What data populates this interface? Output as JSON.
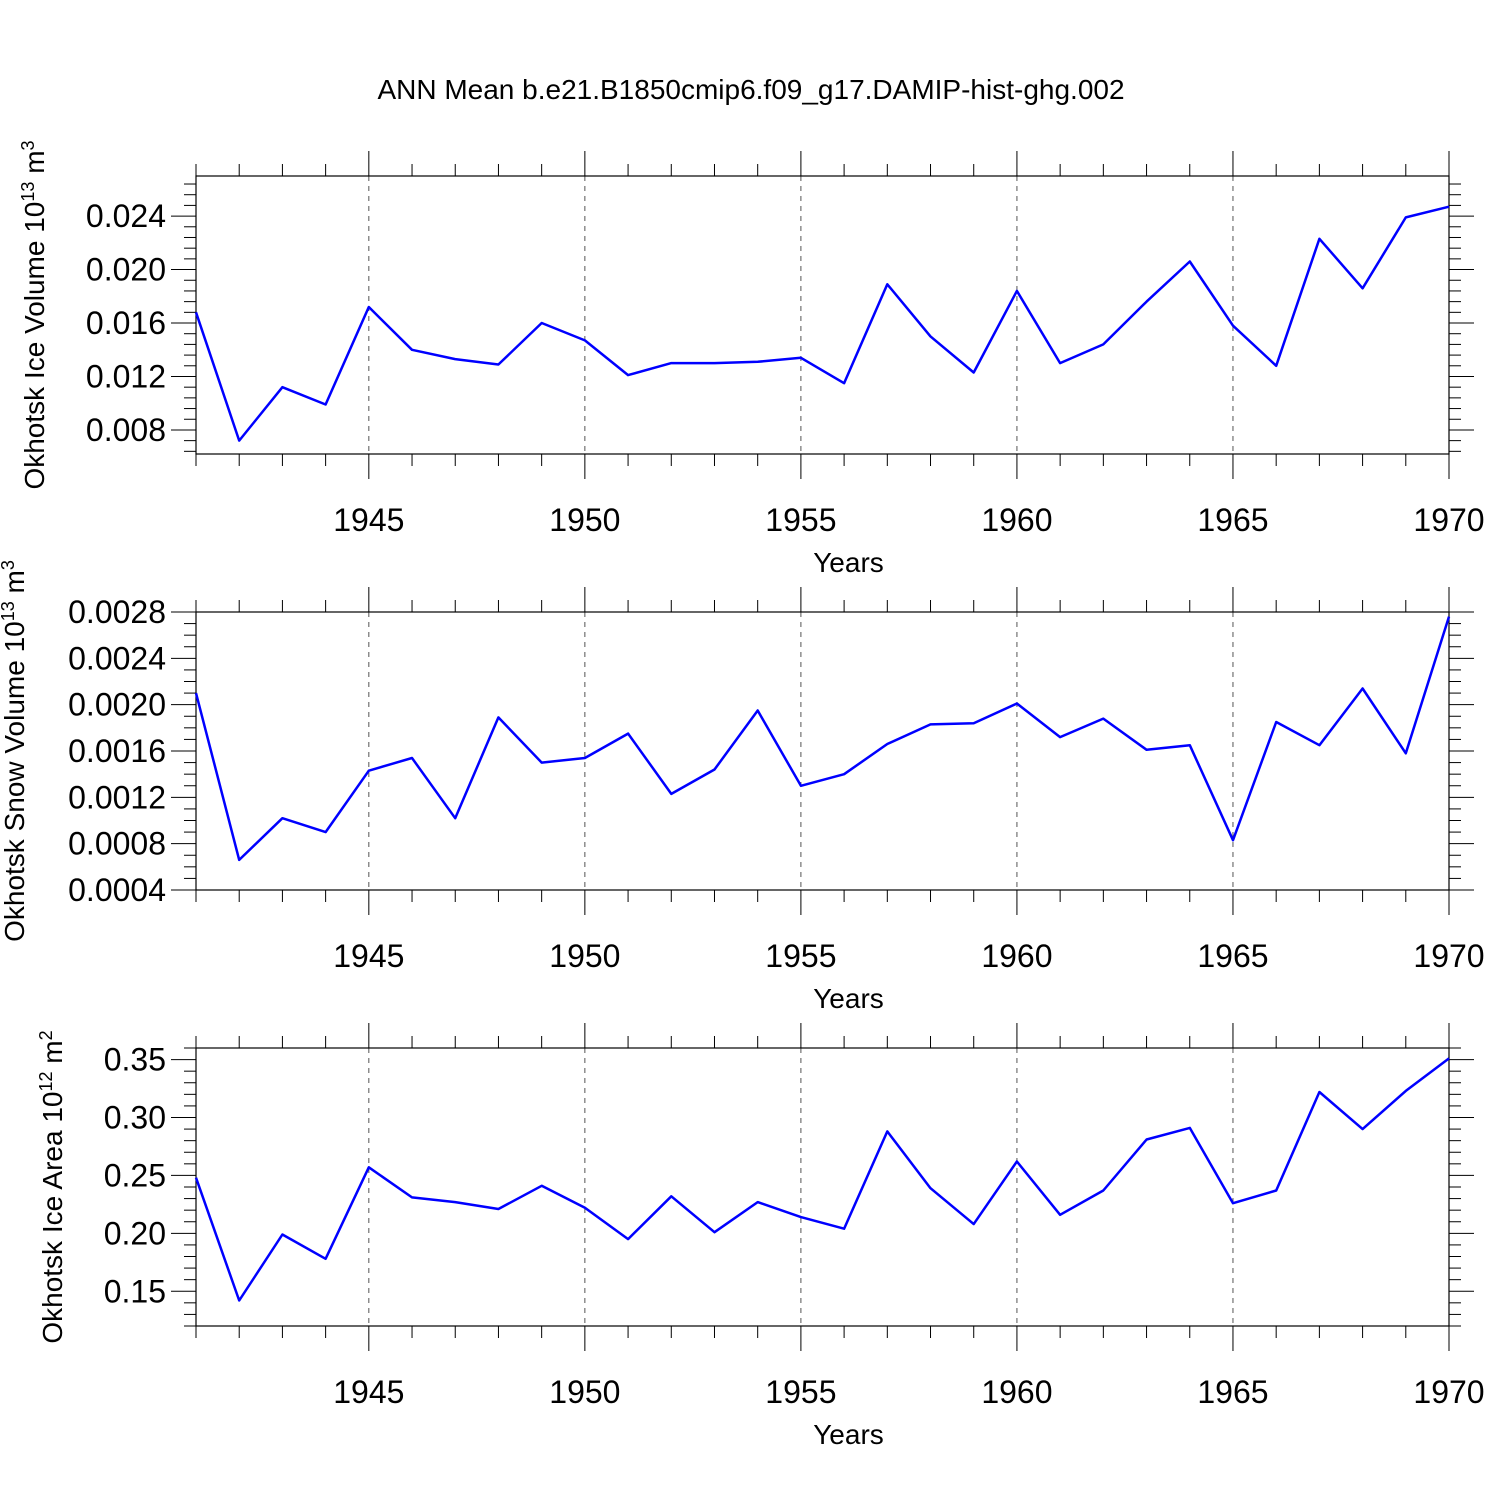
{
  "figure_title": "ANN Mean b.e21.B1850cmip6.f09_g17.DAMIP-hist-ghg.002",
  "chart_data": [
    {
      "type": "line",
      "xlabel": "Years",
      "ylabel": "Okhotsk Ice Volume 10",
      "ylabel_exp": "13",
      "ylabel_unit": " m",
      "ylabel_unit_exp": "3",
      "xlim": [
        1941,
        1970
      ],
      "ylim": [
        0.0062,
        0.027
      ],
      "xticks": [
        1945,
        1950,
        1955,
        1960,
        1965,
        1970
      ],
      "xtick_labels": [
        "1945",
        "1950",
        "1955",
        "1960",
        "1965",
        "1970"
      ],
      "yticks": [
        0.008,
        0.012,
        0.016,
        0.02,
        0.024
      ],
      "ytick_labels": [
        "0.008",
        "0.012",
        "0.016",
        "0.020",
        "0.024"
      ],
      "y_minor_step": 0.0008,
      "grid": "vertical dashed at major x ticks",
      "color": "#0000ff",
      "x": [
        1941,
        1942,
        1943,
        1944,
        1945,
        1946,
        1947,
        1948,
        1949,
        1950,
        1951,
        1952,
        1953,
        1954,
        1955,
        1956,
        1957,
        1958,
        1959,
        1960,
        1961,
        1962,
        1963,
        1964,
        1965,
        1966,
        1967,
        1968,
        1969,
        1970
      ],
      "values": [
        0.0168,
        0.0072,
        0.0112,
        0.0099,
        0.0172,
        0.014,
        0.0133,
        0.0129,
        0.016,
        0.0147,
        0.0121,
        0.013,
        0.013,
        0.0131,
        0.0134,
        0.0115,
        0.0189,
        0.015,
        0.0123,
        0.0184,
        0.013,
        0.0144,
        0.0176,
        0.0206,
        0.0158,
        0.0128,
        0.0223,
        0.0186,
        0.0239,
        0.0247
      ]
    },
    {
      "type": "line",
      "xlabel": "Years",
      "ylabel": "Okhotsk Snow Volume 10",
      "ylabel_exp": "13",
      "ylabel_unit": " m",
      "ylabel_unit_exp": "3",
      "xlim": [
        1941,
        1970
      ],
      "ylim": [
        0.0004,
        0.0028
      ],
      "xticks": [
        1945,
        1950,
        1955,
        1960,
        1965,
        1970
      ],
      "xtick_labels": [
        "1945",
        "1950",
        "1955",
        "1960",
        "1965",
        "1970"
      ],
      "yticks": [
        0.0004,
        0.0008,
        0.0012,
        0.0016,
        0.002,
        0.0024,
        0.0028
      ],
      "ytick_labels": [
        "0.0004",
        "0.0008",
        "0.0012",
        "0.0016",
        "0.0020",
        "0.0024",
        "0.0028"
      ],
      "y_minor_step": 0.0001,
      "grid": "vertical dashed at major x ticks",
      "color": "#0000ff",
      "x": [
        1941,
        1942,
        1943,
        1944,
        1945,
        1946,
        1947,
        1948,
        1949,
        1950,
        1951,
        1952,
        1953,
        1954,
        1955,
        1956,
        1957,
        1958,
        1959,
        1960,
        1961,
        1962,
        1963,
        1964,
        1965,
        1966,
        1967,
        1968,
        1969,
        1970
      ],
      "values": [
        0.0021,
        0.00066,
        0.00102,
        0.0009,
        0.00143,
        0.00154,
        0.00102,
        0.00189,
        0.0015,
        0.00154,
        0.00175,
        0.00123,
        0.00144,
        0.00195,
        0.0013,
        0.0014,
        0.00166,
        0.00183,
        0.00184,
        0.00201,
        0.00172,
        0.00188,
        0.00161,
        0.00165,
        0.00083,
        0.00185,
        0.00165,
        0.00214,
        0.00158,
        0.00276
      ]
    },
    {
      "type": "line",
      "xlabel": "Years",
      "ylabel": "Okhotsk Ice Area 10",
      "ylabel_exp": "12",
      "ylabel_unit": " m",
      "ylabel_unit_exp": "2",
      "xlim": [
        1941,
        1970
      ],
      "ylim": [
        0.12,
        0.36
      ],
      "xticks": [
        1945,
        1950,
        1955,
        1960,
        1965,
        1970
      ],
      "xtick_labels": [
        "1945",
        "1950",
        "1955",
        "1960",
        "1965",
        "1970"
      ],
      "yticks": [
        0.15,
        0.2,
        0.25,
        0.3,
        0.35
      ],
      "ytick_labels": [
        "0.15",
        "0.20",
        "0.25",
        "0.30",
        "0.35"
      ],
      "y_minor_step": 0.01,
      "grid": "vertical dashed at major x ticks",
      "color": "#0000ff",
      "x": [
        1941,
        1942,
        1943,
        1944,
        1945,
        1946,
        1947,
        1948,
        1949,
        1950,
        1951,
        1952,
        1953,
        1954,
        1955,
        1956,
        1957,
        1958,
        1959,
        1960,
        1961,
        1962,
        1963,
        1964,
        1965,
        1966,
        1967,
        1968,
        1969,
        1970
      ],
      "values": [
        0.248,
        0.142,
        0.199,
        0.178,
        0.257,
        0.231,
        0.227,
        0.221,
        0.241,
        0.222,
        0.195,
        0.232,
        0.201,
        0.227,
        0.214,
        0.204,
        0.288,
        0.239,
        0.208,
        0.262,
        0.216,
        0.237,
        0.281,
        0.291,
        0.226,
        0.237,
        0.322,
        0.29,
        0.323,
        0.351
      ]
    }
  ]
}
